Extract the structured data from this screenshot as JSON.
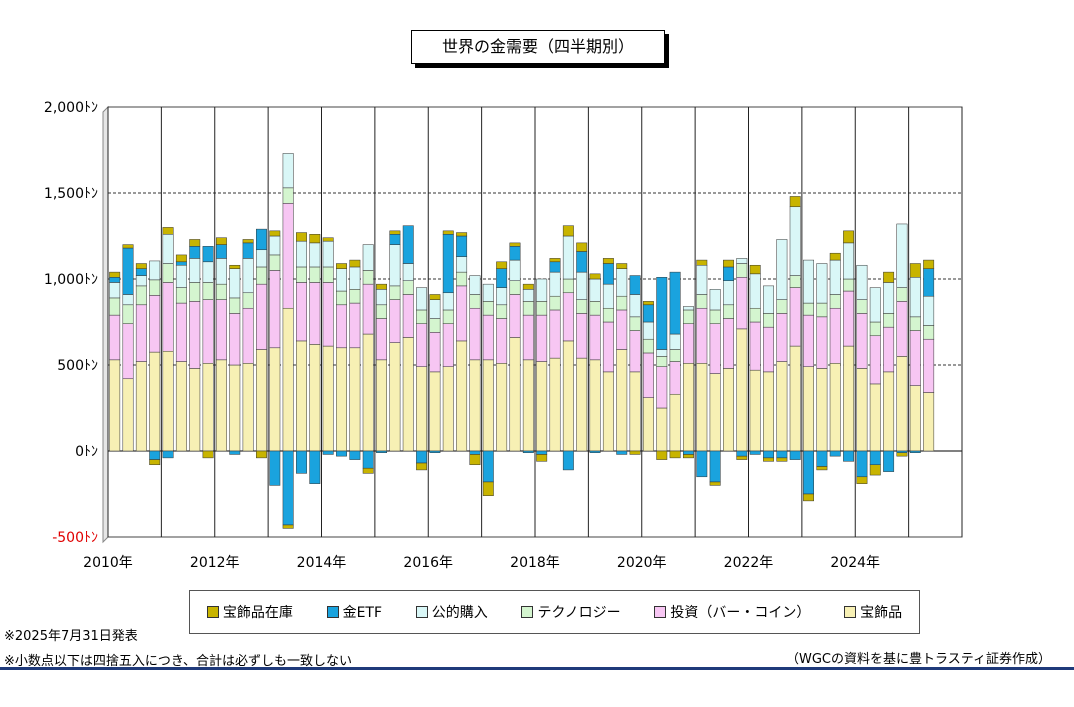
{
  "title": "世界の金需要（四半期別）",
  "notes": {
    "published": "※2025年7月31日発表",
    "rounding": "※小数点以下は四捨五入につき、合計は必ずしも一致しない",
    "source": "（WGCの資料を基に豊トラスティ証券作成）"
  },
  "chart_data": {
    "type": "bar",
    "stacked": true,
    "title": "世界の金需要（四半期別）",
    "ylim": [
      -500,
      2000
    ],
    "yticks": [
      "2,000ﾄﾝ",
      "1,500ﾄﾝ",
      "1,000ﾄﾝ",
      "500ﾄﾝ",
      "0ﾄﾝ",
      "-500ﾄﾝ"
    ],
    "ytick_values": [
      2000,
      1500,
      1000,
      500,
      0,
      -500
    ],
    "xticks": [
      "2010年",
      "2012年",
      "2014年",
      "2016年",
      "2018年",
      "2020年",
      "2022年",
      "2024年"
    ],
    "grid": "horizontal dashed",
    "legend_position": "bottom",
    "categories": [
      "2010Q1",
      "2010Q2",
      "2010Q3",
      "2010Q4",
      "2011Q1",
      "2011Q2",
      "2011Q3",
      "2011Q4",
      "2012Q1",
      "2012Q2",
      "2012Q3",
      "2012Q4",
      "2013Q1",
      "2013Q2",
      "2013Q3",
      "2013Q4",
      "2014Q1",
      "2014Q2",
      "2014Q3",
      "2014Q4",
      "2015Q1",
      "2015Q2",
      "2015Q3",
      "2015Q4",
      "2016Q1",
      "2016Q2",
      "2016Q3",
      "2016Q4",
      "2017Q1",
      "2017Q2",
      "2017Q3",
      "2017Q4",
      "2018Q1",
      "2018Q2",
      "2018Q3",
      "2018Q4",
      "2019Q1",
      "2019Q2",
      "2019Q3",
      "2019Q4",
      "2020Q1",
      "2020Q2",
      "2020Q3",
      "2020Q4",
      "2021Q1",
      "2021Q2",
      "2021Q3",
      "2021Q4",
      "2022Q1",
      "2022Q2",
      "2022Q3",
      "2022Q4",
      "2023Q1",
      "2023Q2",
      "2023Q3",
      "2023Q4",
      "2024Q1",
      "2024Q2",
      "2024Q3",
      "2024Q4",
      "2025Q1",
      "2025Q2"
    ],
    "series": [
      {
        "name": "宝飾品",
        "color": "#f7f0b4",
        "values": [
          530,
          420,
          520,
          575,
          580,
          520,
          480,
          510,
          530,
          500,
          510,
          590,
          600,
          830,
          640,
          620,
          610,
          600,
          600,
          680,
          530,
          630,
          660,
          490,
          460,
          490,
          640,
          530,
          530,
          510,
          660,
          530,
          520,
          540,
          640,
          540,
          530,
          460,
          590,
          460,
          310,
          250,
          330,
          510,
          510,
          450,
          480,
          710,
          470,
          460,
          520,
          610,
          490,
          480,
          510,
          610,
          480,
          390,
          460,
          550,
          380,
          340
        ]
      },
      {
        "name": "投資（バー・コイン）",
        "color": "#f7c6f3",
        "values": [
          260,
          320,
          330,
          330,
          400,
          340,
          390,
          370,
          350,
          300,
          320,
          380,
          450,
          610,
          340,
          360,
          370,
          250,
          260,
          290,
          240,
          250,
          250,
          250,
          230,
          250,
          320,
          300,
          260,
          260,
          250,
          260,
          270,
          280,
          280,
          260,
          260,
          290,
          230,
          240,
          260,
          240,
          190,
          230,
          320,
          290,
          290,
          300,
          280,
          260,
          280,
          340,
          300,
          300,
          320,
          320,
          320,
          280,
          260,
          320,
          320,
          310
        ]
      },
      {
        "name": "テクノロジー",
        "color": "#d4f5cf",
        "values": [
          100,
          110,
          110,
          90,
          110,
          90,
          110,
          100,
          90,
          90,
          90,
          100,
          90,
          90,
          90,
          90,
          90,
          80,
          80,
          80,
          80,
          80,
          80,
          80,
          80,
          80,
          80,
          80,
          80,
          80,
          80,
          80,
          80,
          80,
          80,
          80,
          80,
          80,
          80,
          80,
          80,
          60,
          70,
          80,
          80,
          80,
          80,
          80,
          80,
          80,
          80,
          70,
          70,
          80,
          80,
          70,
          80,
          80,
          80,
          80,
          80,
          80
        ]
      },
      {
        "name": "公的購入",
        "color": "#d9f7f7",
        "values": [
          90,
          60,
          60,
          110,
          170,
          130,
          140,
          120,
          150,
          170,
          200,
          100,
          110,
          200,
          150,
          140,
          150,
          130,
          130,
          150,
          90,
          240,
          100,
          130,
          110,
          100,
          90,
          110,
          100,
          100,
          120,
          70,
          130,
          140,
          250,
          160,
          130,
          140,
          160,
          130,
          100,
          40,
          90,
          20,
          170,
          120,
          140,
          30,
          200,
          160,
          350,
          400,
          250,
          230,
          200,
          210,
          200,
          200,
          180,
          370,
          230,
          170
        ]
      },
      {
        "name": "金ETF",
        "color": "#1aa3de",
        "values": [
          30,
          270,
          40,
          -50,
          -40,
          20,
          70,
          90,
          80,
          -20,
          90,
          120,
          -200,
          -430,
          -130,
          -190,
          -20,
          -30,
          -50,
          -100,
          -10,
          60,
          220,
          -70,
          -10,
          340,
          120,
          -20,
          -180,
          110,
          80,
          -10,
          -20,
          60,
          -110,
          120,
          -10,
          120,
          -20,
          110,
          100,
          420,
          360,
          -20,
          -150,
          -180,
          80,
          -30,
          -20,
          -40,
          -40,
          -50,
          -250,
          -90,
          -30,
          -60,
          -150,
          -80,
          -120,
          -10,
          -10,
          160
        ]
      },
      {
        "name": "宝飾品在庫",
        "color": "#c8b400",
        "values": [
          30,
          20,
          30,
          -30,
          40,
          40,
          40,
          -40,
          40,
          20,
          20,
          -40,
          30,
          -20,
          50,
          50,
          20,
          30,
          40,
          -30,
          30,
          20,
          0,
          -40,
          30,
          20,
          20,
          -60,
          -80,
          40,
          20,
          30,
          -40,
          20,
          60,
          50,
          30,
          30,
          30,
          -20,
          20,
          -50,
          -40,
          -20,
          30,
          -20,
          40,
          -20,
          50,
          -20,
          -20,
          60,
          -40,
          -20,
          40,
          70,
          -40,
          -60,
          60,
          -20,
          80,
          50
        ]
      }
    ]
  },
  "legend": [
    {
      "label": "宝飾品在庫",
      "color": "#c8b400"
    },
    {
      "label": "金ETF",
      "color": "#1aa3de"
    },
    {
      "label": "公的購入",
      "color": "#d9f7f7"
    },
    {
      "label": "テクノロジー",
      "color": "#d4f5cf"
    },
    {
      "label": "投資（バー・コイン）",
      "color": "#f7c6f3"
    },
    {
      "label": "宝飾品",
      "color": "#f7f0b4"
    }
  ],
  "colors": {
    "negative_tick": "#e00000",
    "bottom_rule": "#1f3a7a"
  }
}
